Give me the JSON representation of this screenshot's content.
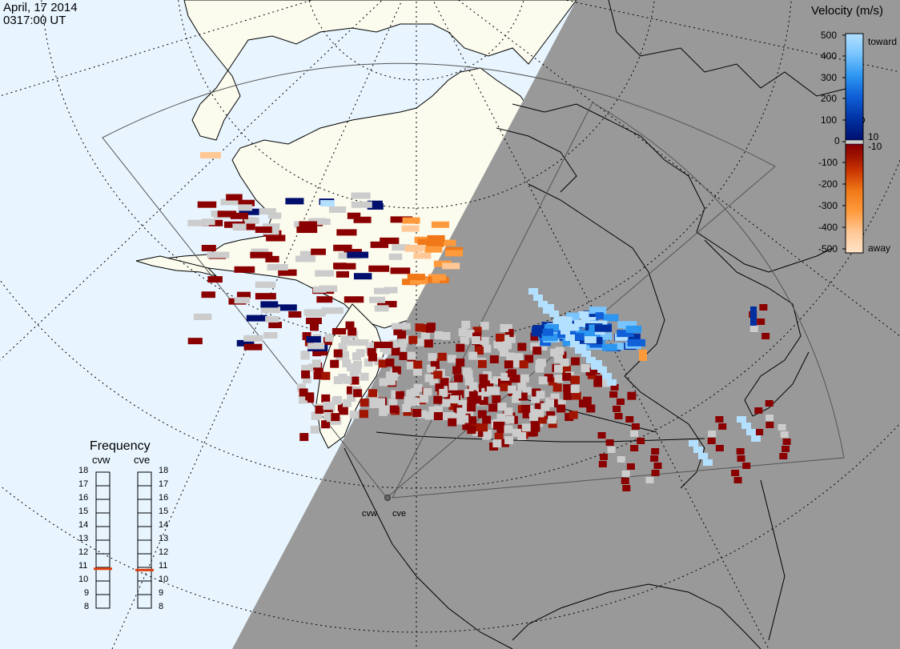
{
  "header": {
    "date": "April, 17 2014",
    "time": "0317:00 UT"
  },
  "colorbar": {
    "title": "Velocity (m/s)",
    "ticks": [
      "500",
      "400",
      "300",
      "200",
      "100",
      "10",
      "0",
      "-10",
      "-100",
      "-200",
      "-300",
      "-400",
      "-500"
    ],
    "toward_label": "toward",
    "away_label": "away",
    "colors": [
      "#ffe4c8",
      "#ffc896",
      "#ff9a3c",
      "#f07818",
      "#c83200",
      "#a01400",
      "#8a0000",
      "#000e6e",
      "#0030a0",
      "#1060d8",
      "#2c96f0",
      "#78c4ff",
      "#b4e0ff"
    ]
  },
  "frequency": {
    "title": "Frequency",
    "radars": [
      {
        "name": "cvw",
        "value_mhz": 10.9
      },
      {
        "name": "cve",
        "value_mhz": 10.8
      }
    ],
    "ticks": [
      "18",
      "17",
      "16",
      "15",
      "14",
      "13",
      "12",
      "11",
      "10",
      "9",
      "8"
    ],
    "marker_color": "#e04010"
  },
  "sites": [
    {
      "label": "cvw"
    },
    {
      "label": "cve"
    }
  ],
  "colors": {
    "ocean": "#e8f5ff",
    "land": "#fbfbee",
    "night": "#999999",
    "ground_scatter": "#cccccc"
  }
}
